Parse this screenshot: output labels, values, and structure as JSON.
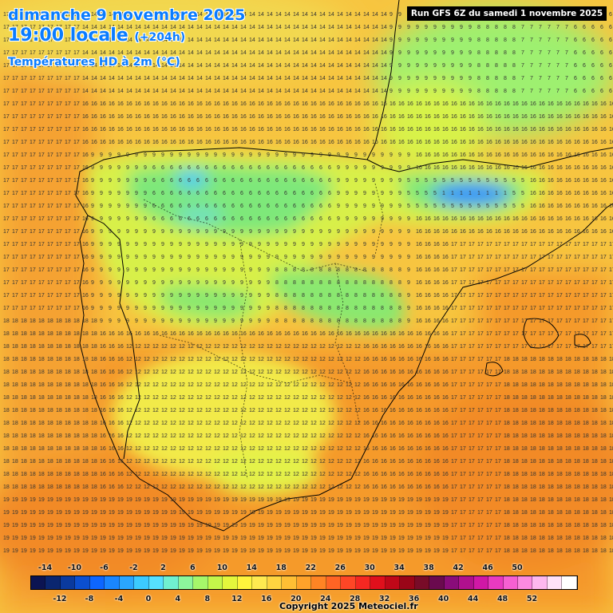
{
  "header": {
    "date_line": "dimanche 9 novembre 2025",
    "time_line": "19:00 locale",
    "lead_time": "(+204h)",
    "parameter": "Températures HD à 2m (°C)",
    "run_info": "Run GFS 6Z du samedi 1 novembre 2025"
  },
  "legend": {
    "top_labels": [
      "-14",
      "-10",
      "-6",
      "-2",
      "2",
      "6",
      "10",
      "14",
      "18",
      "22",
      "26",
      "30",
      "34",
      "38",
      "42",
      "46",
      "50"
    ],
    "bottom_labels": [
      "-12",
      "-8",
      "-4",
      "0",
      "4",
      "8",
      "12",
      "16",
      "20",
      "24",
      "28",
      "32",
      "36",
      "40",
      "44",
      "48",
      "52"
    ],
    "colors": [
      "#0c1452",
      "#0a2670",
      "#0a3a9e",
      "#0b4fd0",
      "#0d66ff",
      "#1a86ff",
      "#2aa6ff",
      "#3ccaff",
      "#56e0ff",
      "#70f0d0",
      "#8cf79c",
      "#a6f76a",
      "#c4f74a",
      "#e4f73c",
      "#fff53c",
      "#ffea50",
      "#ffd540",
      "#ffbf34",
      "#ffa22a",
      "#ff8424",
      "#ff6424",
      "#ff4626",
      "#f52822",
      "#e0101c",
      "#c00818",
      "#9a0618",
      "#780c28",
      "#6a0a4e",
      "#8a0c7a",
      "#b0108e",
      "#d018a6",
      "#e83ac0",
      "#f660d2",
      "#fb8ae0",
      "#fdb8ee",
      "#ffe2f8",
      "#ffffff"
    ]
  },
  "map": {
    "region": "Péninsule Ibérique",
    "field": "temperature_2m",
    "unit": "°C",
    "grid_text_color": "#333333",
    "border_color": "#000000"
  },
  "footer": {
    "copyright": "Copyright 2025 Meteociel.fr"
  }
}
